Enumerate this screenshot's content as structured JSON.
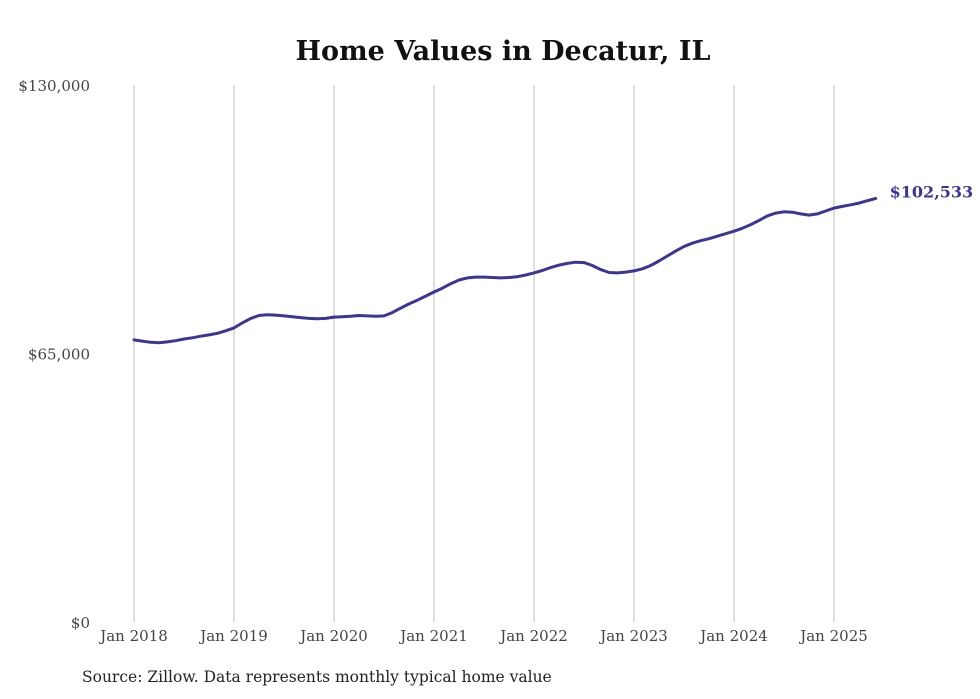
{
  "chart_data": {
    "type": "line",
    "title": "Home Values in Decatur, IL",
    "xlabel": "",
    "ylabel": "",
    "ylim": [
      0,
      130000
    ],
    "y_ticks": [
      0,
      65000,
      130000
    ],
    "y_tick_labels": [
      "$0",
      "$65,000",
      "$130,000"
    ],
    "x_ticks": [
      "Jan 2018",
      "Jan 2019",
      "Jan 2020",
      "Jan 2021",
      "Jan 2022",
      "Jan 2023",
      "Jan 2024",
      "Jan 2025"
    ],
    "grid": "vertical lines at each January",
    "legend": "none",
    "x_start": "Jan 2018",
    "x_end": "Jun 2025",
    "frequency": "monthly",
    "series": [
      {
        "name": "Typical home value",
        "color": "#3b3597",
        "end_label": "$102,533",
        "values": [
          68300,
          68000,
          67700,
          67600,
          67800,
          68100,
          68500,
          68800,
          69200,
          69500,
          69900,
          70500,
          71200,
          72400,
          73500,
          74200,
          74400,
          74300,
          74100,
          73900,
          73700,
          73500,
          73400,
          73500,
          73800,
          73900,
          74000,
          74200,
          74100,
          74000,
          74100,
          74900,
          76000,
          77000,
          77900,
          78900,
          79900,
          80800,
          81900,
          82800,
          83300,
          83500,
          83500,
          83400,
          83300,
          83400,
          83600,
          84000,
          84500,
          85100,
          85800,
          86400,
          86800,
          87100,
          87000,
          86300,
          85300,
          84600,
          84500,
          84700,
          85000,
          85500,
          86300,
          87400,
          88600,
          89800,
          90900,
          91700,
          92300,
          92800,
          93400,
          94000,
          94600,
          95300,
          96200,
          97200,
          98300,
          99000,
          99300,
          99200,
          98800,
          98500,
          98800,
          99500,
          100200,
          100600,
          101000,
          101400,
          102000,
          102533
        ]
      }
    ],
    "source": "Source: Zillow. Data represents monthly typical home value"
  }
}
